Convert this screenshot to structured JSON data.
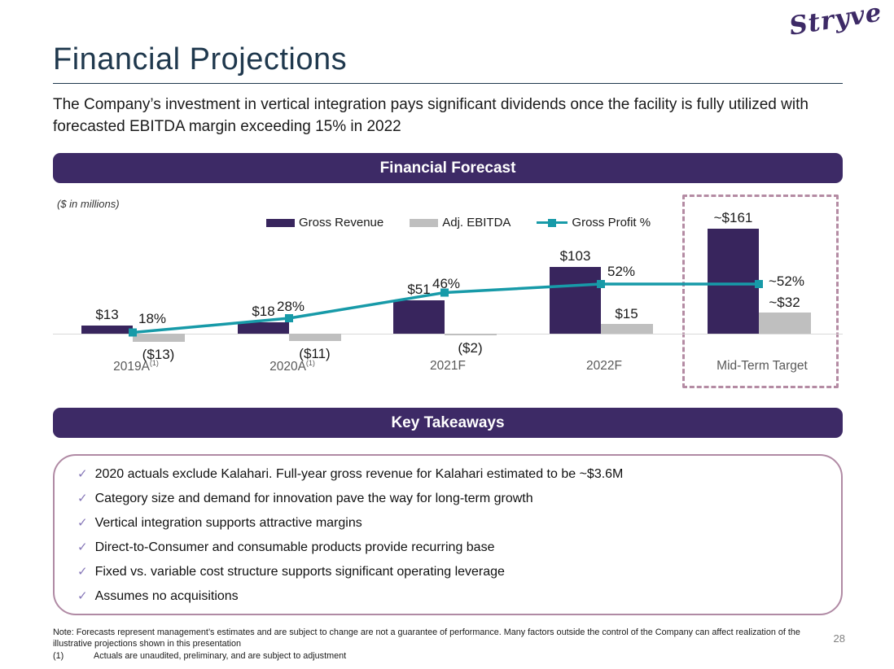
{
  "logo": "Stryve",
  "page": {
    "title": "Financial Projections",
    "subtitle": "The Company’s investment in vertical integration pays significant dividends once the facility is fully utilized with forecasted EBITDA margin exceeding 15% in 2022",
    "page_number": "28"
  },
  "banners": {
    "forecast": "Financial Forecast",
    "takeaways": "Key Takeaways"
  },
  "chart_data": {
    "type": "bar",
    "subtype": "grouped bars with line overlay (combo)",
    "units_label": "($ in millions)",
    "categories": [
      "2019A",
      "2020A",
      "2021F",
      "2022F",
      "Mid-Term Target"
    ],
    "category_footnotes": [
      "(1)",
      "(1)",
      "",
      "",
      ""
    ],
    "series": [
      {
        "name": "Gross Revenue",
        "type": "bar",
        "color": "#38255d",
        "values": [
          13,
          18,
          51,
          103,
          161
        ],
        "labels": [
          "$13",
          "$18",
          "$51",
          "$103",
          "~$161"
        ]
      },
      {
        "name": "Adj. EBITDA",
        "type": "bar",
        "color": "#bfbfbf",
        "values": [
          -13,
          -11,
          -2,
          15,
          32
        ],
        "labels": [
          "($13)",
          "($11)",
          "($2)",
          "$15",
          "~$32"
        ]
      },
      {
        "name": "Gross Profit %",
        "type": "line",
        "color": "#179aa8",
        "values": [
          18,
          28,
          46,
          52,
          52
        ],
        "labels": [
          "18%",
          "28%",
          "46%",
          "52%",
          "~52%"
        ]
      }
    ],
    "highlight_box": {
      "category": "Mid-Term Target",
      "border_color": "#b48ba3"
    },
    "legend_position": "top",
    "grid": false
  },
  "takeaways": {
    "check_glyph": "✓",
    "items": [
      "2020 actuals exclude Kalahari. Full-year gross revenue for Kalahari estimated to be ~$3.6M",
      "Category size and demand for innovation pave the way for long-term growth",
      "Vertical integration supports attractive margins",
      "Direct-to-Consumer and consumable products provide recurring base",
      "Fixed vs. variable cost structure supports significant operating leverage",
      "Assumes no acquisitions"
    ]
  },
  "footer": {
    "note": "Note: Forecasts represent management’s estimates and are subject to change are not a guarantee of performance.  Many factors outside the control of the Company can affect realization of the illustrative projections shown in this presentation",
    "footnote_marker": "(1)",
    "footnote_text": "Actuals are unaudited, preliminary, and are subject to adjustment"
  }
}
